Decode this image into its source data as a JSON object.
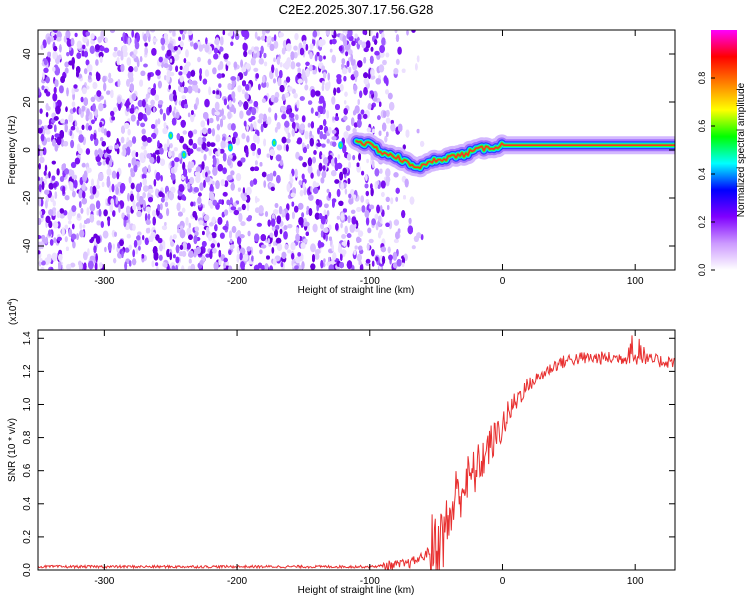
{
  "title": "C2E2.2025.307.17.56.G28",
  "chart_data": [
    {
      "type": "heatmap",
      "name": "spectrogram",
      "xlabel": "Height of straight line (km)",
      "ylabel": "Frequency (Hz)",
      "xlim": [
        -350,
        130
      ],
      "ylim": [
        -50,
        50
      ],
      "xticks": [
        -300,
        -200,
        -100,
        0,
        100
      ],
      "xtick_labels": [
        "-300",
        "-200",
        "-100",
        "0",
        "100"
      ],
      "yticks": [
        -40,
        -20,
        0,
        20,
        40
      ],
      "ytick_labels": [
        "-40",
        "-20",
        "0",
        "20",
        "40"
      ],
      "noise_region_end_km": -80,
      "signal_track": {
        "x": [
          -110,
          -100,
          -90,
          -80,
          -70,
          -60,
          -50,
          -40,
          -30,
          -20,
          -10,
          0,
          20,
          60,
          100,
          130
        ],
        "y": [
          4,
          2,
          -1,
          -3,
          -6,
          -7,
          -4,
          -3,
          -2,
          0,
          1,
          2,
          2,
          2,
          2,
          2
        ]
      },
      "colorbar": {
        "label": "Normalized spectral amplitude",
        "range": [
          0,
          1
        ],
        "ticks": [
          0.0,
          0.2,
          0.4,
          0.6,
          0.8
        ],
        "tick_labels": [
          "0.0",
          "0.2",
          "0.4",
          "0.6",
          "0.8"
        ],
        "colors": [
          "#ffffff",
          "#cc99ff",
          "#8000ff",
          "#0000ff",
          "#00ffff",
          "#00ff00",
          "#ffff00",
          "#ff8000",
          "#ff0000",
          "#ff00ff"
        ]
      }
    },
    {
      "type": "line",
      "name": "snr",
      "xlabel": "Height of straight line (km)",
      "ylabel": "SNR (10 * v/v)",
      "y_scale_label": "(x10",
      "y_scale_exponent": "4",
      "y_scale_close": ")",
      "xlim": [
        -350,
        130
      ],
      "ylim": [
        0,
        1.45
      ],
      "xticks": [
        -300,
        -200,
        -100,
        0,
        100
      ],
      "xtick_labels": [
        "-300",
        "-200",
        "-100",
        "0",
        "100"
      ],
      "yticks": [
        0.0,
        0.2,
        0.4,
        0.6,
        0.8,
        1.0,
        1.2,
        1.4
      ],
      "ytick_labels": [
        "0.0",
        "0.2",
        "0.4",
        "0.6",
        "0.8",
        "1.0",
        "1.2",
        "1.4"
      ],
      "color": "#e83030",
      "series": [
        {
          "name": "SNR",
          "x": [
            -350,
            -300,
            -200,
            -150,
            -100,
            -80,
            -70,
            -60,
            -50,
            -45,
            -40,
            -35,
            -30,
            -25,
            -20,
            -15,
            -10,
            -5,
            0,
            5,
            10,
            15,
            20,
            30,
            40,
            50,
            60,
            70,
            80,
            90,
            100,
            110,
            120,
            130
          ],
          "y": [
            0.02,
            0.02,
            0.02,
            0.02,
            0.02,
            0.03,
            0.04,
            0.08,
            0.15,
            0.2,
            0.3,
            0.45,
            0.5,
            0.55,
            0.6,
            0.67,
            0.75,
            0.8,
            0.87,
            0.95,
            1.02,
            1.08,
            1.12,
            1.18,
            1.24,
            1.27,
            1.28,
            1.28,
            1.28,
            1.28,
            1.28,
            1.27,
            1.26,
            1.26
          ]
        }
      ]
    }
  ]
}
